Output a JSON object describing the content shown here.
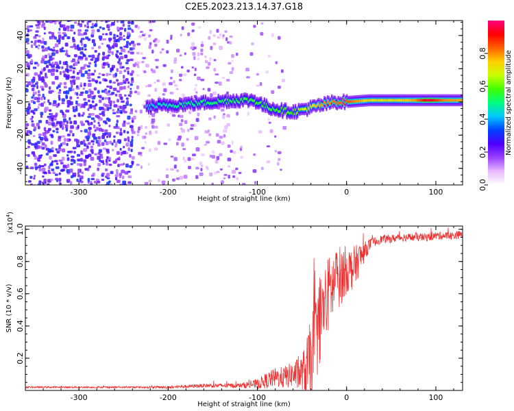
{
  "title": "C2E5.2023.213.14.37.G18",
  "chart_data": [
    {
      "type": "heatmap",
      "xlabel": "Height of straight line (km)",
      "ylabel": "Frequency (Hz)",
      "xlim": [
        -360,
        130
      ],
      "ylim": [
        -50,
        49
      ],
      "xticks": [
        -300,
        -200,
        -100,
        0,
        100
      ],
      "yticks": [
        -40,
        -20,
        0,
        20,
        40
      ],
      "colorbar": {
        "label": "Normalized spectral amplitude",
        "range": [
          0.0,
          1.0
        ],
        "ticks": [
          0.0,
          0.2,
          0.4,
          0.6,
          0.8
        ],
        "colors": [
          "#ffffff",
          "#e8b8ff",
          "#9a40ff",
          "#4d00ff",
          "#0040ff",
          "#00c8ff",
          "#00ff80",
          "#40ff00",
          "#c8ff00",
          "#ffd000",
          "#ff6000",
          "#ff0000",
          "#ff0080"
        ]
      },
      "ridge": {
        "x": [
          -225,
          -200,
          -175,
          -150,
          -125,
          -105,
          -90,
          -75,
          -60,
          -45,
          -30,
          -15,
          0,
          25,
          50,
          75,
          90,
          110,
          130
        ],
        "y": [
          -3,
          -2,
          -1,
          0,
          1,
          1,
          -3,
          -5,
          -6,
          -4,
          -2,
          0,
          0,
          1,
          1,
          1,
          1,
          1,
          1
        ],
        "amplitude": [
          0.42,
          0.48,
          0.5,
          0.52,
          0.54,
          0.56,
          0.55,
          0.58,
          0.6,
          0.7,
          0.78,
          0.82,
          0.85,
          0.72,
          0.72,
          0.78,
          0.95,
          0.8,
          0.78
        ]
      },
      "noise_regions": [
        {
          "x": [
            -360,
            -240
          ],
          "density": "high"
        },
        {
          "x": [
            -240,
            -130
          ],
          "density": "medium"
        },
        {
          "x": [
            -130,
            -70
          ],
          "density": "low"
        }
      ]
    },
    {
      "type": "line",
      "xlabel": "Height of straight line (km)",
      "ylabel": "SNR (10 * v/v)",
      "y_multiplier_label": "(x10",
      "y_multiplier_exp": "4",
      "y_multiplier_close": ")",
      "xlim": [
        -360,
        130
      ],
      "ylim": [
        0.0,
        1.02
      ],
      "xticks": [
        -300,
        -200,
        -100,
        0,
        100
      ],
      "yticks": [
        0.2,
        0.4,
        0.6,
        0.8,
        1.0
      ],
      "ytick_labels": [
        "0.2",
        "0.4",
        "0.6",
        "0.8",
        "1.0"
      ],
      "color": "#f03030",
      "series": [
        {
          "x": [
            -360,
            -300,
            -250,
            -200,
            -160,
            -140,
            -120,
            -100,
            -90,
            -80,
            -70,
            -60,
            -50,
            -45,
            -40,
            -35,
            -30,
            -25,
            -20,
            -15,
            -10,
            -5,
            0,
            5,
            10,
            15,
            20,
            25,
            30,
            40,
            50,
            60,
            70,
            80,
            90,
            100,
            110,
            120,
            130
          ],
          "y": [
            0.02,
            0.02,
            0.02,
            0.02,
            0.03,
            0.03,
            0.03,
            0.04,
            0.06,
            0.08,
            0.08,
            0.1,
            0.1,
            0.12,
            0.2,
            0.3,
            0.45,
            0.5,
            0.6,
            0.65,
            0.7,
            0.72,
            0.75,
            0.75,
            0.78,
            0.82,
            0.86,
            0.9,
            0.92,
            0.94,
            0.94,
            0.95,
            0.95,
            0.95,
            0.95,
            0.96,
            0.96,
            0.96,
            0.97
          ],
          "noise": [
            0.005,
            0.005,
            0.005,
            0.008,
            0.012,
            0.014,
            0.015,
            0.03,
            0.05,
            0.06,
            0.07,
            0.08,
            0.12,
            0.2,
            0.25,
            0.28,
            0.28,
            0.26,
            0.24,
            0.22,
            0.2,
            0.18,
            0.15,
            0.14,
            0.12,
            0.1,
            0.06,
            0.04,
            0.03,
            0.025,
            0.025,
            0.025,
            0.025,
            0.025,
            0.025,
            0.025,
            0.025,
            0.025,
            0.025
          ]
        }
      ]
    }
  ]
}
